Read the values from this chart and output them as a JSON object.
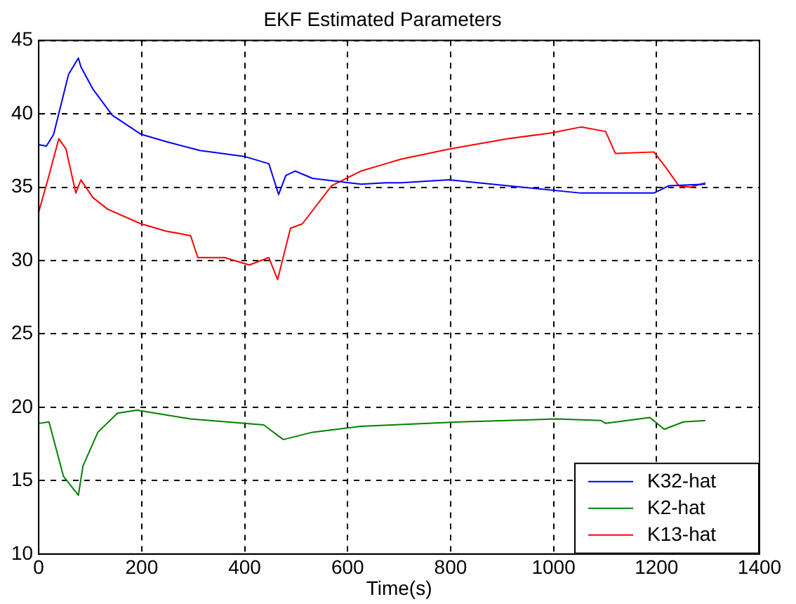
{
  "chart_data": {
    "type": "line",
    "title": "EKF Estimated Parameters",
    "xlabel": "Time(s)",
    "xlim": [
      0,
      1400
    ],
    "xticks": [
      0,
      200,
      400,
      600,
      800,
      1000,
      1200,
      1400
    ],
    "ylim": [
      10,
      45
    ],
    "yticks": [
      10,
      15,
      20,
      25,
      30,
      35,
      40,
      45
    ],
    "grid": true,
    "legend": "bottom right",
    "marker": "none",
    "line_style": "solid",
    "series": [
      {
        "name": "K32-hat",
        "color": "#0000ff",
        "x": [
          0,
          15,
          29,
          58,
          77,
          82,
          105,
          143,
          199,
          248,
          313,
          399,
          447,
          466,
          480,
          498,
          532,
          626,
          674,
          703,
          797,
          911,
          1053,
          1195,
          1224,
          1295
        ],
        "values": [
          37.9,
          37.8,
          38.6,
          42.7,
          43.8,
          43.2,
          41.7,
          39.9,
          38.6,
          38.1,
          37.5,
          37.1,
          36.6,
          34.5,
          35.8,
          36.1,
          35.6,
          35.2,
          35.3,
          35.3,
          35.5,
          35.1,
          34.6,
          34.6,
          35.1,
          35.2
        ]
      },
      {
        "name": "K2-hat",
        "color": "#008000",
        "x": [
          0,
          20,
          48,
          77,
          86,
          115,
          153,
          191,
          295,
          437,
          475,
          532,
          626,
          817,
          1006,
          1092,
          1101,
          1187,
          1215,
          1252,
          1295
        ],
        "values": [
          18.9,
          19.0,
          15.3,
          14.0,
          16.0,
          18.3,
          19.6,
          19.8,
          19.2,
          18.8,
          17.8,
          18.3,
          18.7,
          19.0,
          19.2,
          19.1,
          18.9,
          19.3,
          18.5,
          19.0,
          19.1
        ]
      },
      {
        "name": "K13-hat",
        "color": "#ff0000",
        "x": [
          0,
          20,
          39,
          53,
          72,
          82,
          105,
          134,
          199,
          248,
          295,
          309,
          361,
          409,
          447,
          464,
          489,
          512,
          569,
          626,
          674,
          703,
          797,
          911,
          996,
          1053,
          1101,
          1120,
          1195,
          1219,
          1243,
          1266,
          1295
        ],
        "values": [
          33.3,
          35.8,
          38.3,
          37.6,
          34.6,
          35.5,
          34.3,
          33.5,
          32.5,
          32.0,
          31.7,
          30.2,
          30.2,
          29.7,
          30.2,
          28.7,
          32.2,
          32.5,
          35.1,
          36.1,
          36.6,
          36.9,
          37.6,
          38.3,
          38.7,
          39.1,
          38.8,
          37.3,
          37.4,
          36.3,
          35.1,
          35.0,
          35.3
        ]
      }
    ]
  }
}
